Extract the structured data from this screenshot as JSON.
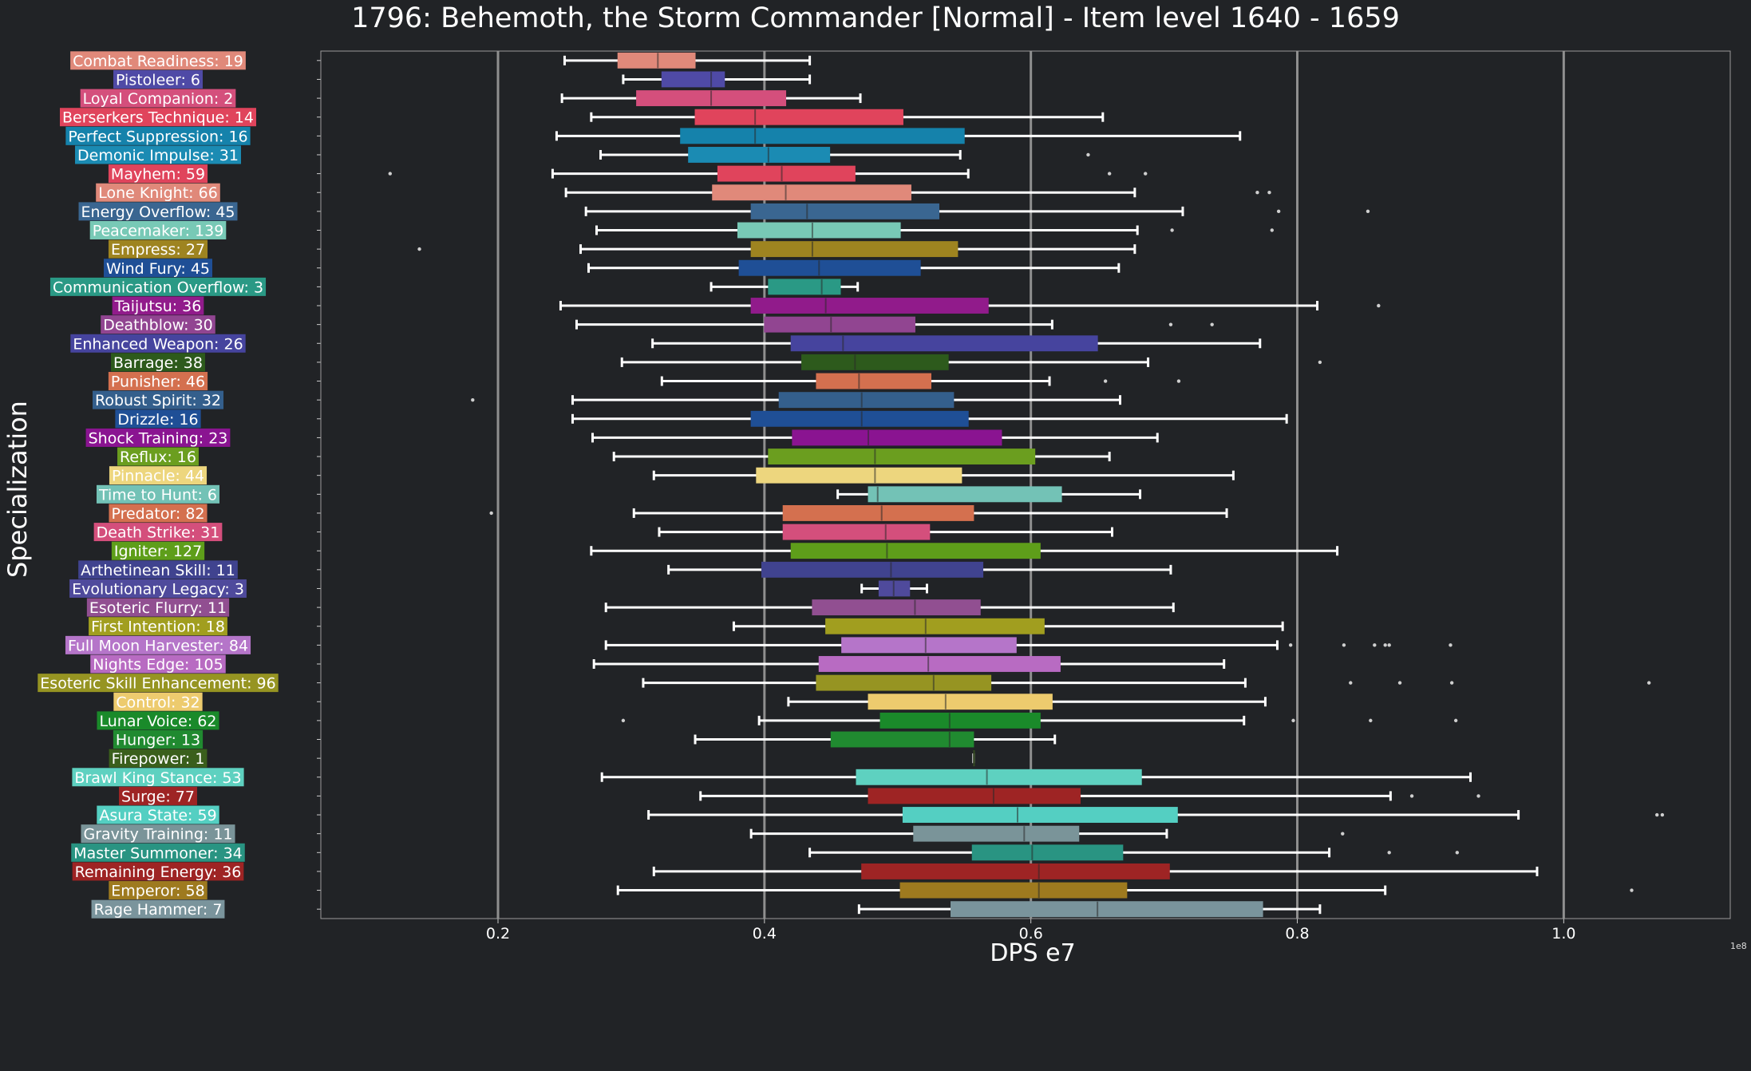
{
  "chart_data": {
    "type": "box",
    "title": "1796: Behemoth, the Storm Commander [Normal] - Item level 1640 - 1659",
    "xlabel": "DPS e7",
    "ylabel": "Specialization",
    "x_scale_label": "1e8",
    "xlim": [
      0.067,
      1.125
    ],
    "xticks": [
      0.2,
      0.4,
      0.6,
      0.8,
      1.0
    ],
    "xtick_labels": [
      "0.2",
      "0.4",
      "0.6",
      "0.8",
      "1.0"
    ],
    "grid": "vertical",
    "series": [
      {
        "label": "Combat Readiness: 19",
        "color": "#e0897a",
        "stats": [
          0.25,
          0.29,
          0.32,
          0.348,
          0.434
        ],
        "outliers": []
      },
      {
        "label": "Pistoleer: 6",
        "color": "#4f4aa6",
        "stats": [
          0.294,
          0.323,
          0.36,
          0.37,
          0.434
        ],
        "outliers": []
      },
      {
        "label": "Loyal Companion: 2",
        "color": "#d44f7c",
        "stats": [
          0.248,
          0.304,
          0.36,
          0.416,
          0.472
        ],
        "outliers": []
      },
      {
        "label": "Berserkers Technique: 14",
        "color": "#e0445c",
        "stats": [
          0.27,
          0.348,
          0.393,
          0.504,
          0.654
        ],
        "outliers": []
      },
      {
        "label": "Perfect Suppression: 16",
        "color": "#1582ab",
        "stats": [
          0.244,
          0.337,
          0.393,
          0.55,
          0.757
        ],
        "outliers": []
      },
      {
        "label": "Demonic Impulse: 31",
        "color": "#1b8bb3",
        "stats": [
          0.277,
          0.343,
          0.403,
          0.449,
          0.547
        ],
        "outliers": [
          0.643
        ]
      },
      {
        "label": "Mayhem: 59",
        "color": "#e0445c",
        "stats": [
          0.241,
          0.365,
          0.413,
          0.468,
          0.553
        ],
        "outliers": [
          0.119,
          0.659,
          0.686
        ]
      },
      {
        "label": "Lone Knight: 66",
        "color": "#e0897a",
        "stats": [
          0.251,
          0.361,
          0.416,
          0.51,
          0.678
        ],
        "outliers": [
          0.77,
          0.779
        ]
      },
      {
        "label": "Energy Overflow: 45",
        "color": "#3a6691",
        "stats": [
          0.266,
          0.39,
          0.432,
          0.531,
          0.714
        ],
        "outliers": [
          0.786,
          0.853
        ]
      },
      {
        "label": "Peacemaker: 139",
        "color": "#78c9b6",
        "stats": [
          0.274,
          0.38,
          0.436,
          0.502,
          0.68
        ],
        "outliers": [
          0.706,
          0.781
        ]
      },
      {
        "label": "Empress: 27",
        "color": "#9e8420",
        "stats": [
          0.262,
          0.39,
          0.436,
          0.545,
          0.678
        ],
        "outliers": [
          0.141
        ]
      },
      {
        "label": "Wind Fury: 45",
        "color": "#1f4f96",
        "stats": [
          0.268,
          0.381,
          0.441,
          0.517,
          0.666
        ],
        "outliers": []
      },
      {
        "label": "Communication Overflow: 3",
        "color": "#2a9985",
        "stats": [
          0.36,
          0.403,
          0.443,
          0.457,
          0.47
        ],
        "outliers": []
      },
      {
        "label": "Taijutsu: 36",
        "color": "#911b8b",
        "stats": [
          0.247,
          0.39,
          0.446,
          0.568,
          0.815
        ],
        "outliers": [
          0.861
        ]
      },
      {
        "label": "Deathblow: 30",
        "color": "#914591",
        "stats": [
          0.259,
          0.4,
          0.45,
          0.513,
          0.616
        ],
        "outliers": [
          0.705,
          0.736
        ]
      },
      {
        "label": "Enhanced Weapon: 26",
        "color": "#46449e",
        "stats": [
          0.316,
          0.42,
          0.459,
          0.65,
          0.772
        ],
        "outliers": []
      },
      {
        "label": "Barrage: 38",
        "color": "#2d5a1c",
        "stats": [
          0.293,
          0.428,
          0.468,
          0.538,
          0.688
        ],
        "outliers": [
          0.817
        ]
      },
      {
        "label": "Punisher: 46",
        "color": "#d4704f",
        "stats": [
          0.323,
          0.439,
          0.471,
          0.525,
          0.614
        ],
        "outliers": [
          0.656,
          0.711
        ]
      },
      {
        "label": "Robust Spirit: 32",
        "color": "#345f8c",
        "stats": [
          0.256,
          0.411,
          0.473,
          0.542,
          0.667
        ],
        "outliers": [
          0.181
        ]
      },
      {
        "label": "Drizzle: 16",
        "color": "#1f4f96",
        "stats": [
          0.256,
          0.39,
          0.473,
          0.553,
          0.792
        ],
        "outliers": []
      },
      {
        "label": "Shock Training: 23",
        "color": "#8a1491",
        "stats": [
          0.271,
          0.421,
          0.478,
          0.578,
          0.695
        ],
        "outliers": []
      },
      {
        "label": "Reflux: 16",
        "color": "#6b9e1f",
        "stats": [
          0.287,
          0.403,
          0.483,
          0.603,
          0.659
        ],
        "outliers": []
      },
      {
        "label": "Pinnacle: 44",
        "color": "#edd67e",
        "stats": [
          0.317,
          0.394,
          0.483,
          0.548,
          0.752
        ],
        "outliers": []
      },
      {
        "label": "Time to Hunt: 6",
        "color": "#73c2b6",
        "stats": [
          0.455,
          0.478,
          0.485,
          0.623,
          0.682
        ],
        "outliers": []
      },
      {
        "label": "Predator: 82",
        "color": "#d4704f",
        "stats": [
          0.302,
          0.414,
          0.488,
          0.557,
          0.747
        ],
        "outliers": [
          0.195
        ]
      },
      {
        "label": "Death Strike: 31",
        "color": "#d44f7c",
        "stats": [
          0.321,
          0.414,
          0.491,
          0.524,
          0.661
        ],
        "outliers": []
      },
      {
        "label": "Igniter: 127",
        "color": "#5e9e1a",
        "stats": [
          0.27,
          0.42,
          0.492,
          0.607,
          0.83
        ],
        "outliers": []
      },
      {
        "label": "Arthetinean Skill: 11",
        "color": "#40438f",
        "stats": [
          0.328,
          0.398,
          0.495,
          0.564,
          0.705
        ],
        "outliers": []
      },
      {
        "label": "Evolutionary Legacy: 3",
        "color": "#4f4a9c",
        "stats": [
          0.473,
          0.486,
          0.497,
          0.509,
          0.522
        ],
        "outliers": []
      },
      {
        "label": "Esoteric Flurry: 11",
        "color": "#914f91",
        "stats": [
          0.281,
          0.436,
          0.513,
          0.562,
          0.707
        ],
        "outliers": []
      },
      {
        "label": "First Intention: 18",
        "color": "#a19e1f",
        "stats": [
          0.377,
          0.446,
          0.521,
          0.61,
          0.789
        ],
        "outliers": []
      },
      {
        "label": "Full Moon Harvester: 84",
        "color": "#b575c9",
        "stats": [
          0.281,
          0.458,
          0.521,
          0.589,
          0.785
        ],
        "outliers": [
          0.795,
          0.835,
          0.858,
          0.866,
          0.869,
          0.915
        ]
      },
      {
        "label": "Nights Edge: 105",
        "color": "#b86bc2",
        "stats": [
          0.272,
          0.441,
          0.523,
          0.622,
          0.745
        ],
        "outliers": []
      },
      {
        "label": "Esoteric Skill Enhancement: 96",
        "color": "#969422",
        "stats": [
          0.309,
          0.439,
          0.527,
          0.57,
          0.761
        ],
        "outliers": [
          0.84,
          0.877,
          0.916,
          1.064
        ]
      },
      {
        "label": "Control: 32",
        "color": "#edcb6e",
        "stats": [
          0.418,
          0.478,
          0.536,
          0.616,
          0.776
        ],
        "outliers": []
      },
      {
        "label": "Lunar Voice: 62",
        "color": "#1a8a2a",
        "stats": [
          0.396,
          0.487,
          0.539,
          0.607,
          0.76
        ],
        "outliers": [
          0.294,
          0.797,
          0.855,
          0.919
        ]
      },
      {
        "label": "Hunger: 13",
        "color": "#208a30",
        "stats": [
          0.348,
          0.45,
          0.539,
          0.557,
          0.618
        ],
        "outliers": []
      },
      {
        "label": "Firepower: 1",
        "color": "#3a5f1c",
        "stats": [
          0.557,
          0.557,
          0.557,
          0.557,
          0.557
        ],
        "outliers": []
      },
      {
        "label": "Brawl King Stance: 53",
        "color": "#5ed1c0",
        "stats": [
          0.278,
          0.469,
          0.567,
          0.683,
          0.93
        ],
        "outliers": []
      },
      {
        "label": "Surge: 77",
        "color": "#9e2424",
        "stats": [
          0.352,
          0.478,
          0.572,
          0.637,
          0.87
        ],
        "outliers": [
          0.886,
          0.936
        ]
      },
      {
        "label": "Asura State: 59",
        "color": "#54cfc2",
        "stats": [
          0.313,
          0.504,
          0.59,
          0.71,
          0.966
        ],
        "outliers": [
          1.07,
          1.074
        ]
      },
      {
        "label": "Gravity Training: 11",
        "color": "#7a9499",
        "stats": [
          0.39,
          0.512,
          0.595,
          0.636,
          0.702
        ],
        "outliers": [
          0.834
        ]
      },
      {
        "label": "Master Summoner: 34",
        "color": "#299482",
        "stats": [
          0.434,
          0.556,
          0.601,
          0.669,
          0.824
        ],
        "outliers": [
          0.869,
          0.92
        ]
      },
      {
        "label": "Remaining Energy: 36",
        "color": "#9e2424",
        "stats": [
          0.317,
          0.473,
          0.606,
          0.704,
          0.98
        ],
        "outliers": []
      },
      {
        "label": "Emperor: 58",
        "color": "#9e7a1f",
        "stats": [
          0.29,
          0.502,
          0.606,
          0.672,
          0.866
        ],
        "outliers": [
          1.051
        ]
      },
      {
        "label": "Rage Hammer: 7",
        "color": "#7a949c",
        "stats": [
          0.471,
          0.54,
          0.65,
          0.774,
          0.817
        ],
        "outliers": []
      }
    ]
  }
}
